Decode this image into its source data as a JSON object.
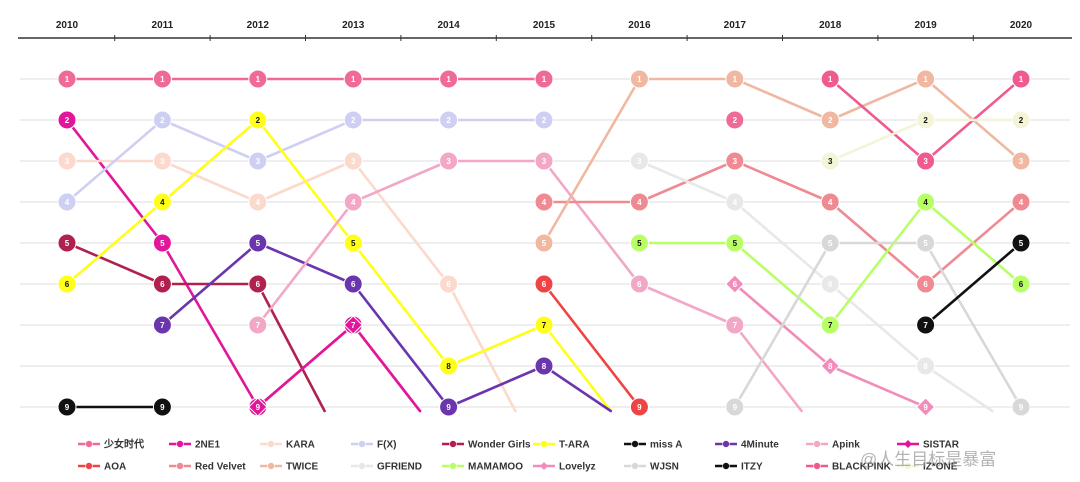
{
  "chart_data": {
    "type": "line",
    "x": [
      "2010",
      "2011",
      "2012",
      "2013",
      "2014",
      "2015",
      "2016",
      "2017",
      "2018",
      "2019",
      "2020"
    ],
    "ylim": [
      1,
      9
    ],
    "y_inverted": true,
    "grid": true,
    "legend_position": "bottom",
    "series": [
      {
        "name": "少女时代",
        "color": "#ef6a98",
        "marker": "circle",
        "values": [
          1,
          1,
          1,
          1,
          1,
          1,
          null,
          2,
          null,
          null,
          null
        ]
      },
      {
        "name": "2NE1",
        "color": "#e2169a",
        "marker": "circle",
        "values": [
          2,
          5,
          9,
          7,
          10,
          null,
          null,
          null,
          null,
          null,
          null
        ]
      },
      {
        "name": "KARA",
        "color": "#fbd9cd",
        "marker": "circle",
        "values": [
          3,
          3,
          4,
          3,
          6,
          10,
          null,
          null,
          null,
          null,
          null
        ]
      },
      {
        "name": "F(X)",
        "color": "#cfcff3",
        "marker": "circle",
        "values": [
          4,
          2,
          3,
          2,
          2,
          2,
          null,
          null,
          null,
          null,
          null
        ]
      },
      {
        "name": "Wonder Girls",
        "color": "#b0214e",
        "marker": "circle",
        "values": [
          5,
          6,
          6,
          10,
          null,
          null,
          null,
          null,
          null,
          null,
          null
        ]
      },
      {
        "name": "T-ARA",
        "color": "#ffff1a",
        "marker": "circle",
        "values": [
          6,
          4,
          2,
          5,
          8,
          7,
          10,
          null,
          null,
          null,
          null
        ]
      },
      {
        "name": "miss A",
        "color": "#111111",
        "marker": "circle",
        "values": [
          9,
          9,
          null,
          null,
          null,
          null,
          null,
          null,
          null,
          null,
          null
        ]
      },
      {
        "name": "4Minute",
        "color": "#6a35ad",
        "marker": "circle",
        "values": [
          null,
          7,
          5,
          6,
          9,
          8,
          10,
          null,
          null,
          null,
          null
        ]
      },
      {
        "name": "Apink",
        "color": "#f2a7c7",
        "marker": "circle",
        "values": [
          null,
          null,
          7,
          4,
          3,
          3,
          6,
          7,
          10,
          null,
          null
        ]
      },
      {
        "name": "SISTAR",
        "color": "#e2169a",
        "marker": "diamond",
        "values": [
          null,
          null,
          9,
          7,
          10,
          null,
          null,
          null,
          null,
          null,
          null
        ]
      },
      {
        "name": "AOA",
        "color": "#ef4444",
        "marker": "circle",
        "values": [
          null,
          null,
          null,
          null,
          10,
          6,
          9,
          null,
          null,
          null,
          null
        ]
      },
      {
        "name": "Red Velvet",
        "color": "#f08a92",
        "marker": "circle",
        "values": [
          null,
          null,
          null,
          null,
          null,
          4,
          4,
          3,
          4,
          6,
          4
        ]
      },
      {
        "name": "TWICE",
        "color": "#f0b8a0",
        "marker": "circle",
        "values": [
          null,
          null,
          null,
          null,
          null,
          5,
          1,
          1,
          2,
          1,
          3
        ]
      },
      {
        "name": "GFRIEND",
        "color": "#e8e8e8",
        "marker": "circle",
        "values": [
          null,
          null,
          null,
          null,
          null,
          null,
          3,
          4,
          6,
          8,
          10
        ]
      },
      {
        "name": "MAMAMOO",
        "color": "#b8ff66",
        "marker": "circle",
        "values": [
          null,
          null,
          null,
          null,
          null,
          null,
          5,
          5,
          7,
          4,
          6
        ]
      },
      {
        "name": "Lovelyz",
        "color": "#f28cba",
        "marker": "diamond",
        "values": [
          null,
          null,
          null,
          null,
          null,
          null,
          null,
          6,
          8,
          9,
          null
        ]
      },
      {
        "name": "WJSN",
        "color": "#d8d8d8",
        "marker": "circle",
        "values": [
          null,
          null,
          null,
          null,
          null,
          null,
          null,
          9,
          5,
          5,
          9
        ]
      },
      {
        "name": "ITZY",
        "color": "#111111",
        "marker": "circle",
        "values": [
          null,
          null,
          null,
          null,
          null,
          null,
          null,
          null,
          null,
          7,
          5
        ]
      },
      {
        "name": "BLACKPINK",
        "color": "#ef5a90",
        "marker": "circle",
        "values": [
          null,
          null,
          null,
          null,
          null,
          null,
          null,
          null,
          1,
          3,
          1
        ]
      },
      {
        "name": "IZ*ONE",
        "color": "#f4f4d8",
        "marker": "circle",
        "values": [
          null,
          null,
          null,
          null,
          null,
          null,
          null,
          null,
          3,
          2,
          2
        ]
      }
    ]
  },
  "watermark": "@人生目标是暴富"
}
